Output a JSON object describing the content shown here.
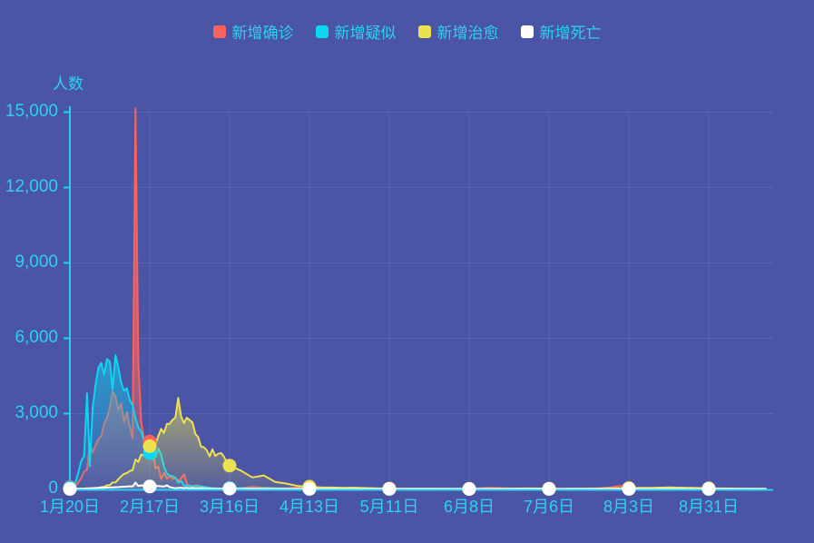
{
  "colors": {
    "background": "#4a56a5",
    "grid": "#5d68b6",
    "axis": "#29cdf6",
    "label_text": "#2dd0f4"
  },
  "chart_data": {
    "type": "line",
    "subtype": "multi-series area line chart, daily values",
    "y_axis_name": "人数",
    "legend_position": "top",
    "grid": true,
    "ylim": [
      0,
      15152
    ],
    "y_ticks": [
      0,
      3000,
      6000,
      9000,
      12000,
      15000
    ],
    "y_tick_labels": [
      "0",
      "3,000",
      "6,000",
      "9,000",
      "12,000",
      "15,000"
    ],
    "x_tick_labels": [
      "1月20日",
      "2月17日",
      "3月16日",
      "4月13日",
      "5月11日",
      "6月8日",
      "7月6日",
      "8月3日",
      "8月31日"
    ],
    "x_tick_days": [
      0,
      28,
      56,
      84,
      112,
      140,
      168,
      196,
      224
    ],
    "marker_days": [
      0,
      28,
      56,
      84,
      112,
      140,
      168,
      196,
      224
    ],
    "days": [
      0,
      1,
      2,
      3,
      4,
      5,
      6,
      7,
      8,
      9,
      10,
      11,
      12,
      13,
      14,
      15,
      16,
      17,
      18,
      19,
      20,
      21,
      22,
      23,
      24,
      25,
      26,
      27,
      28,
      29,
      30,
      31,
      32,
      33,
      34,
      35,
      36,
      37,
      38,
      39,
      40,
      41,
      42,
      43,
      44,
      45,
      46,
      47,
      48,
      49,
      50,
      51,
      52,
      53,
      54,
      55,
      56,
      60,
      64,
      68,
      72,
      76,
      80,
      84,
      88,
      92,
      96,
      100,
      104,
      108,
      112,
      119,
      126,
      133,
      140,
      147,
      154,
      161,
      168,
      172,
      175,
      178,
      182,
      186,
      190,
      193,
      196,
      200,
      203,
      210,
      217,
      224,
      231,
      238,
      244
    ],
    "series": [
      {
        "name": "新增确诊",
        "color": "#f9625e",
        "values": [
          77,
          149,
          131,
          259,
          444,
          688,
          769,
          1771,
          1459,
          1737,
          1982,
          2102,
          2590,
          2829,
          3235,
          3887,
          3694,
          3143,
          3399,
          2656,
          3062,
          2478,
          2015,
          15152,
          5090,
          2641,
          2009,
          2048,
          1886,
          1749,
          820,
          889,
          397,
          648,
          409,
          508,
          406,
          433,
          327,
          427,
          573,
          202,
          125,
          119,
          139,
          143,
          99,
          44,
          40,
          19,
          24,
          15,
          8,
          11,
          20,
          16,
          21,
          39,
          78,
          54,
          36,
          30,
          63,
          89,
          26,
          30,
          11,
          4,
          2,
          1,
          17,
          6,
          7,
          5,
          4,
          49,
          22,
          12,
          4,
          2,
          8,
          6,
          11,
          34,
          68,
          127,
          36,
          31,
          44,
          22,
          14,
          10,
          10,
          8,
          10
        ]
      },
      {
        "name": "新增疑似",
        "color": "#0cd6f2",
        "values": [
          54,
          37,
          257,
          680,
          1118,
          1309,
          3806,
          900,
          3248,
          4148,
          4812,
          5019,
          4562,
          5173,
          5072,
          3971,
          5328,
          4833,
          4214,
          3916,
          4008,
          3536,
          3342,
          2807,
          2450,
          2277,
          1918,
          1563,
          1432,
          1185,
          1277,
          1614,
          1361,
          882,
          620,
          530,
          508,
          452,
          248,
          318,
          132,
          129,
          141,
          102,
          119,
          100,
          99,
          84,
          71,
          45,
          33,
          29,
          24,
          17,
          36,
          30,
          35,
          31,
          20,
          25,
          22,
          13,
          9,
          12,
          10,
          8,
          6,
          5,
          3,
          2,
          6,
          4,
          3,
          2,
          3,
          10,
          5,
          3,
          2,
          1,
          2,
          2,
          3,
          4,
          6,
          5,
          3,
          2,
          3,
          2,
          1,
          2,
          1,
          2,
          1
        ]
      },
      {
        "name": "新增治愈",
        "color": "#eee14f",
        "values": [
          0,
          0,
          0,
          6,
          3,
          11,
          2,
          9,
          43,
          21,
          47,
          72,
          85,
          147,
          157,
          262,
          261,
          387,
          510,
          600,
          632,
          716,
          744,
          1171,
          1081,
          1373,
          1323,
          1425,
          1701,
          1824,
          1779,
          2109,
          2393,
          2230,
          2589,
          2595,
          2750,
          2842,
          3622,
          2885,
          2623,
          2837,
          2742,
          2652,
          2189,
          2068,
          1681,
          1661,
          1535,
          1297,
          1578,
          1318,
          1399,
          1430,
          1289,
          1062,
          930,
          730,
          459,
          537,
          282,
          212,
          116,
          89,
          64,
          57,
          46,
          51,
          36,
          20,
          15,
          11,
          12,
          6,
          5,
          8,
          13,
          21,
          15,
          9,
          11,
          7,
          13,
          19,
          24,
          28,
          33,
          48,
          41,
          61,
          48,
          25,
          18,
          12,
          9
        ]
      },
      {
        "name": "新增死亡",
        "color": "#ffffff",
        "values": [
          2,
          3,
          8,
          8,
          16,
          15,
          24,
          26,
          26,
          38,
          43,
          46,
          45,
          57,
          64,
          65,
          73,
          73,
          86,
          89,
          97,
          108,
          97,
          254,
          121,
          143,
          142,
          105,
          98,
          136,
          114,
          118,
          109,
          97,
          150,
          71,
          52,
          29,
          44,
          47,
          35,
          42,
          31,
          38,
          31,
          30,
          28,
          27,
          22,
          17,
          14,
          11,
          7,
          6,
          10,
          14,
          13,
          3,
          7,
          5,
          5,
          4,
          2,
          0,
          0,
          0,
          0,
          0,
          0,
          0,
          0,
          0,
          0,
          0,
          0,
          0,
          0,
          0,
          0,
          0,
          0,
          0,
          0,
          0,
          0,
          0,
          0,
          0,
          0,
          0,
          0,
          0,
          0,
          0,
          0
        ]
      }
    ]
  }
}
